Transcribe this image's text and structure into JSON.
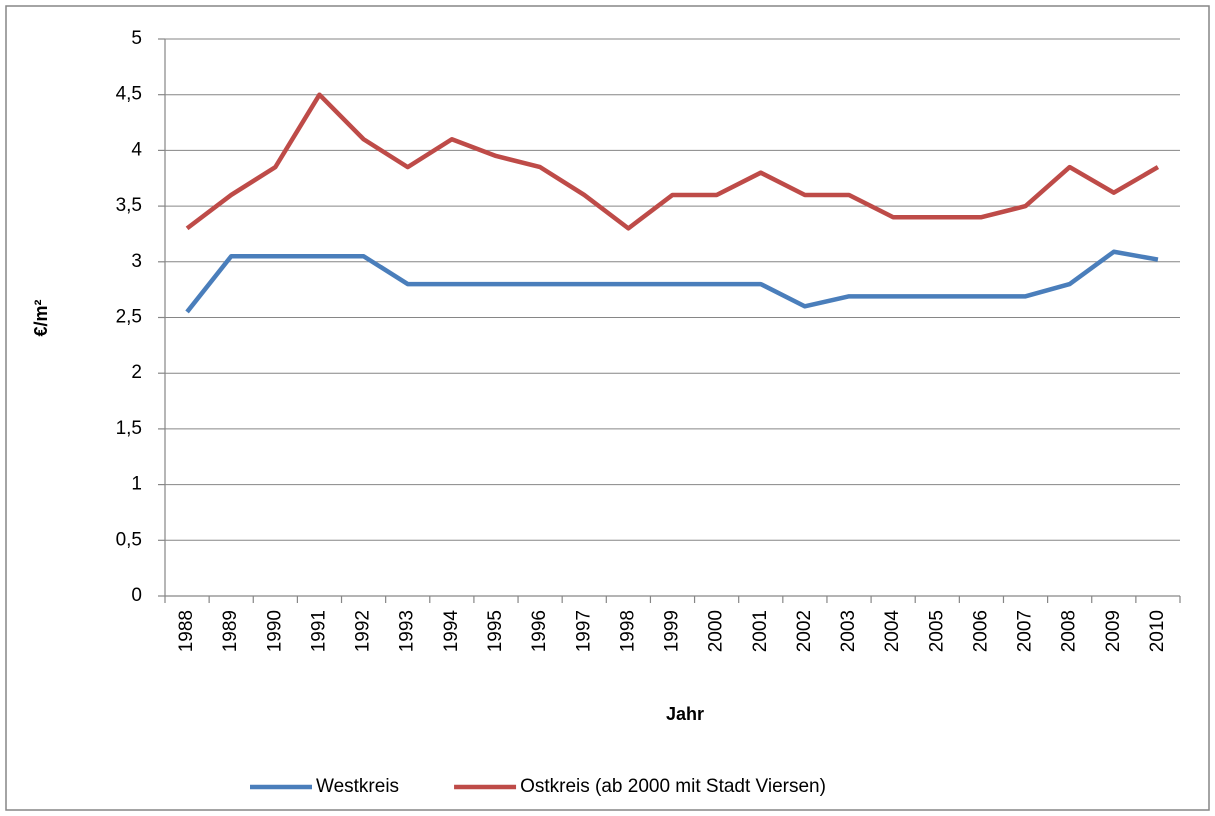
{
  "chart_data": {
    "type": "line",
    "x_label": "Jahr",
    "y_label": "€/m²",
    "categories": [
      "1988",
      "1989",
      "1990",
      "1991",
      "1992",
      "1993",
      "1994",
      "1995",
      "1996",
      "1997",
      "1998",
      "1999",
      "2000",
      "2001",
      "2002",
      "2003",
      "2004",
      "2005",
      "2006",
      "2007",
      "2008",
      "2009",
      "2010"
    ],
    "series": [
      {
        "name": "Westkreis",
        "color": "#4a7ebb",
        "values": [
          2.55,
          3.05,
          3.05,
          3.05,
          3.05,
          2.8,
          2.8,
          2.8,
          2.8,
          2.8,
          2.8,
          2.8,
          2.8,
          2.8,
          2.6,
          2.69,
          2.69,
          2.69,
          2.69,
          2.69,
          2.8,
          3.09,
          3.02
        ]
      },
      {
        "name": "Ostkreis (ab 2000 mit Stadt Viersen)",
        "color": "#be4b48",
        "values": [
          3.3,
          3.6,
          3.85,
          4.5,
          4.1,
          3.85,
          4.1,
          3.95,
          3.85,
          3.6,
          3.3,
          3.6,
          3.6,
          3.8,
          3.6,
          3.6,
          3.4,
          3.4,
          3.4,
          3.5,
          3.85,
          3.62,
          3.85
        ]
      }
    ],
    "ylim": [
      0,
      5
    ],
    "yticks": [
      0,
      {
        "value": 0.5,
        "label": "0,5"
      },
      1,
      {
        "value": 1.5,
        "label": "1,5"
      },
      2,
      {
        "value": 2.5,
        "label": "2,5"
      },
      3,
      {
        "value": 3.5,
        "label": "3,5"
      },
      4,
      {
        "value": 4.5,
        "label": "4,5"
      },
      5
    ],
    "grid": true,
    "legend": "bottom"
  }
}
